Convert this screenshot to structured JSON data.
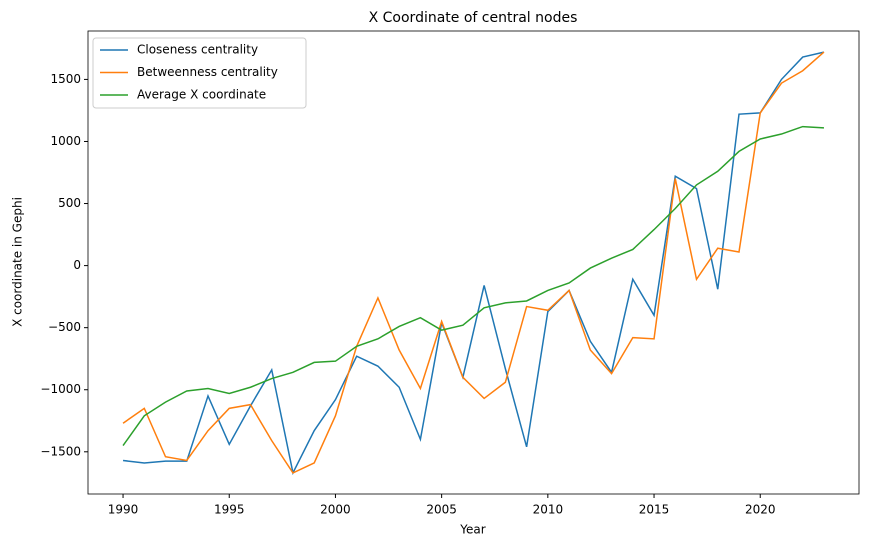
{
  "chart_data": {
    "type": "line",
    "title": "X Coordinate of central nodes",
    "x_label": "Year",
    "y_label": "X coordinate in Gephi",
    "x": [
      1990,
      1991,
      1992,
      1993,
      1994,
      1995,
      1996,
      1997,
      1998,
      1999,
      2000,
      2001,
      2002,
      2003,
      2004,
      2005,
      2006,
      2007,
      2008,
      2009,
      2010,
      2011,
      2012,
      2013,
      2014,
      2015,
      2016,
      2017,
      2018,
      2019,
      2020,
      2021,
      2022,
      2023
    ],
    "series": [
      {
        "name": "Closeness centrality",
        "color": "#1f77b4",
        "values": [
          -1570,
          -1590,
          -1575,
          -1575,
          -1050,
          -1440,
          -1130,
          -840,
          -1670,
          -1330,
          -1080,
          -730,
          -810,
          -980,
          -1400,
          -460,
          -900,
          -160,
          -830,
          -1460,
          -370,
          -200,
          -610,
          -860,
          -110,
          -400,
          720,
          620,
          -190,
          1220,
          1230,
          1500,
          1680,
          1720
        ]
      },
      {
        "name": "Betweenness centrality",
        "color": "#ff7f0e",
        "values": [
          -1270,
          -1150,
          -1540,
          -1570,
          -1330,
          -1150,
          -1120,
          -1410,
          -1670,
          -1590,
          -1210,
          -650,
          -260,
          -680,
          -990,
          -450,
          -900,
          -1070,
          -940,
          -330,
          -360,
          -200,
          -680,
          -870,
          -580,
          -590,
          700,
          -110,
          140,
          110,
          1230,
          1470,
          1570,
          1720
        ]
      },
      {
        "name": "Average X coordinate",
        "color": "#2ca02c",
        "values": [
          -1450,
          -1210,
          -1100,
          -1010,
          -990,
          -1030,
          -980,
          -910,
          -860,
          -780,
          -770,
          -650,
          -590,
          -490,
          -420,
          -520,
          -480,
          -340,
          -300,
          -285,
          -200,
          -140,
          -20,
          60,
          130,
          290,
          460,
          650,
          760,
          920,
          1020,
          1060,
          1120,
          1110
        ]
      }
    ],
    "xlim": [
      1988.35,
      2024.65
    ],
    "xticks": [
      1990,
      1995,
      2000,
      2005,
      2010,
      2015,
      2020
    ],
    "ylim": [
      -1840,
      1890
    ],
    "yticks": [
      {
        "value": -1500,
        "label": "−1500"
      },
      {
        "value": -1000,
        "label": "−1000"
      },
      {
        "value": -500,
        "label": "−500"
      },
      0,
      500,
      1000,
      1500
    ],
    "legend": "upper left",
    "grid": false
  }
}
